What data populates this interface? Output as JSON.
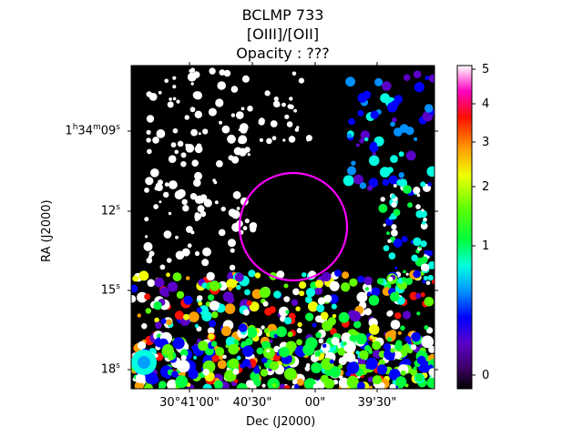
{
  "chart_data": {
    "type": "heatmap",
    "title_lines": [
      "BCLMP 733",
      "[OIII]/[OII]",
      "Opacity : ???"
    ],
    "xlabel": "Dec (J2000)",
    "ylabel": "RA (J2000)",
    "x_ticks": [
      "30°41'00\"",
      "40'30\"",
      "00\"",
      "39'30\""
    ],
    "y_ticks": [
      {
        "h": "1",
        "m": "34",
        "s": "09",
        "label": "1h34m09s"
      },
      {
        "label": "12s"
      },
      {
        "label": "15s"
      },
      {
        "label": "18s"
      }
    ],
    "colorbar": {
      "ticks": [
        0,
        1,
        2,
        3,
        4,
        5
      ],
      "range": [
        -0.1,
        5.1
      ],
      "scale": "nonlinear",
      "colormap": "gist_ncar-like (black-purple-blue-cyan-green-yellow-orange-red-white)"
    },
    "annotations": [
      {
        "type": "circle",
        "color": "#ff00ff"
      }
    ]
  }
}
